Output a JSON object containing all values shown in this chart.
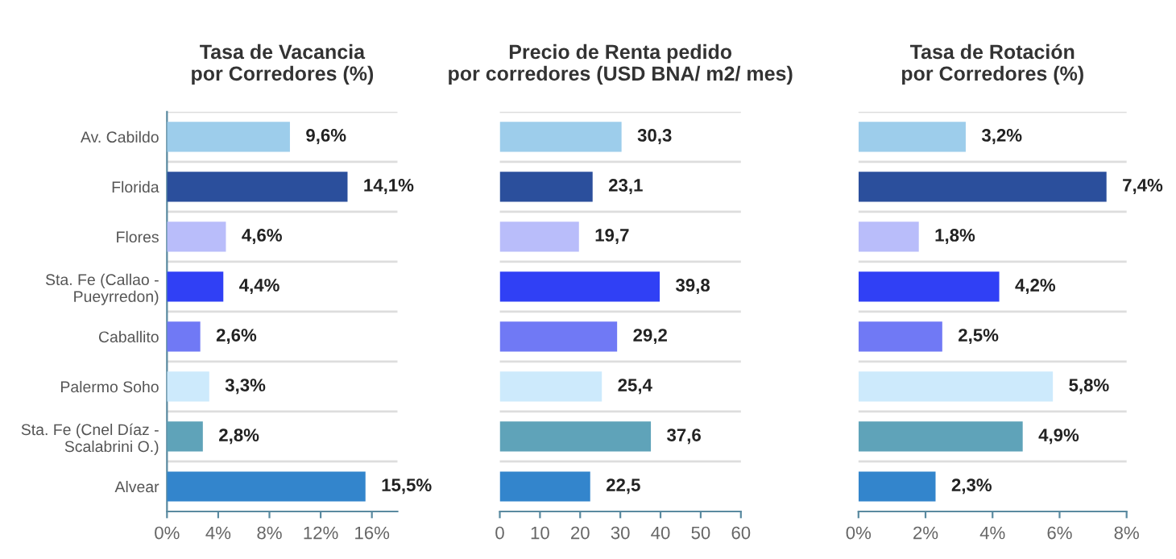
{
  "chart_data": [
    {
      "type": "bar",
      "orientation": "horizontal",
      "title": "Tasa de Vacancia\npor Corredores (%)",
      "categories": [
        "Av. Cabildo",
        "Florida",
        "Flores",
        "Sta. Fe (Callao -\nPueyrredon)",
        "Caballito",
        "Palermo Soho",
        "Sta. Fe (Cnel Díaz -\nScalabrini O.)",
        "Alvear"
      ],
      "values": [
        9.6,
        14.1,
        4.6,
        4.4,
        2.6,
        3.3,
        2.8,
        15.5
      ],
      "value_labels": [
        "9,6%",
        "14,1%",
        "4,6%",
        "4,4%",
        "2,6%",
        "3,3%",
        "2,8%",
        "15,5%"
      ],
      "colors": [
        "#9dcdeb",
        "#2b4f9c",
        "#b9bdfa",
        "#3040f5",
        "#7079f5",
        "#cdeafc",
        "#5fa3b9",
        "#3385cc"
      ],
      "xlim": [
        0,
        18
      ],
      "xticks": [
        {
          "value": 0,
          "label": "0%"
        },
        {
          "value": 4,
          "label": "4%"
        },
        {
          "value": 8,
          "label": "8%"
        },
        {
          "value": 12,
          "label": "12%"
        },
        {
          "value": 16,
          "label": "16%"
        }
      ],
      "grid": "y"
    },
    {
      "type": "bar",
      "orientation": "horizontal",
      "title": "Precio de Renta pedido\npor corredores (USD BNA/ m2/ mes)",
      "categories": [
        null,
        null,
        null,
        null,
        null,
        null,
        null,
        null
      ],
      "values": [
        30.3,
        23.1,
        19.7,
        39.8,
        29.2,
        25.4,
        37.6,
        22.5
      ],
      "value_labels": [
        "30,3",
        "23,1",
        "19,7",
        "39,8",
        "29,2",
        "25,4",
        "37,6",
        "22,5"
      ],
      "colors": [
        "#9dcdeb",
        "#2b4f9c",
        "#b9bdfa",
        "#3040f5",
        "#7079f5",
        "#cdeafc",
        "#5fa3b9",
        "#3385cc"
      ],
      "xlim": [
        0,
        60
      ],
      "xticks": [
        0,
        10,
        20,
        30,
        40,
        50,
        60
      ],
      "tick_labels": "x",
      "grid": "y"
    },
    {
      "type": "bar",
      "orientation": "horizontal",
      "title": "Tasa de Rotación\npor Corredores (%)",
      "categories": [
        null,
        null,
        null,
        null,
        null,
        null,
        null,
        null
      ],
      "values": [
        3.2,
        7.4,
        1.8,
        4.2,
        2.5,
        5.8,
        4.9,
        2.3
      ],
      "value_labels": [
        "3,2%",
        "7,4%",
        "1,8%",
        "4,2%",
        "2,5%",
        "5,8%",
        "4,9%",
        "2,3%"
      ],
      "colors": [
        "#9dcdeb",
        "#2b4f9c",
        "#b9bdfa",
        "#3040f5",
        "#7079f5",
        "#cdeafc",
        "#5fa3b9",
        "#3385cc"
      ],
      "xlim": [
        0,
        8
      ],
      "xticks": [
        {
          "value": 0,
          "label": "0%"
        },
        {
          "value": 2,
          "label": "2%"
        },
        {
          "value": 4,
          "label": "4%"
        },
        {
          "value": 6,
          "label": "6%"
        },
        {
          "value": 8,
          "label": "8%"
        }
      ],
      "tick_labels": "x",
      "grid": "y"
    }
  ]
}
